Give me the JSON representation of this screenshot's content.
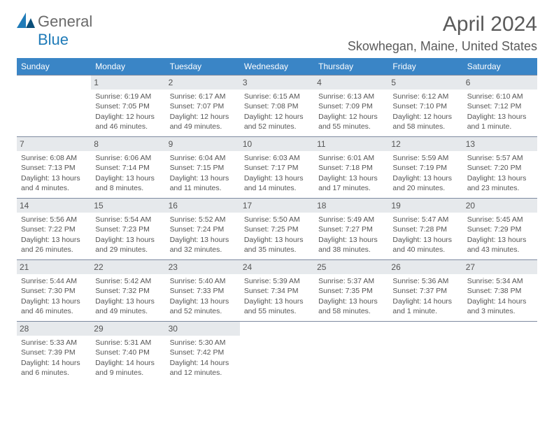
{
  "brand": {
    "part1": "General",
    "part2": "Blue"
  },
  "title": "April 2024",
  "location": "Skowhegan, Maine, United States",
  "colors": {
    "header_bg": "#3a85c6",
    "daynum_bg": "#e6e9ec",
    "row_border": "#7d8aa0",
    "text": "#555555"
  },
  "weekdays": [
    "Sunday",
    "Monday",
    "Tuesday",
    "Wednesday",
    "Thursday",
    "Friday",
    "Saturday"
  ],
  "days": [
    {
      "n": "",
      "sr": "",
      "ss": "",
      "dl1": "",
      "dl2": "",
      "empty": true
    },
    {
      "n": "1",
      "sr": "Sunrise: 6:19 AM",
      "ss": "Sunset: 7:05 PM",
      "dl1": "Daylight: 12 hours",
      "dl2": "and 46 minutes."
    },
    {
      "n": "2",
      "sr": "Sunrise: 6:17 AM",
      "ss": "Sunset: 7:07 PM",
      "dl1": "Daylight: 12 hours",
      "dl2": "and 49 minutes."
    },
    {
      "n": "3",
      "sr": "Sunrise: 6:15 AM",
      "ss": "Sunset: 7:08 PM",
      "dl1": "Daylight: 12 hours",
      "dl2": "and 52 minutes."
    },
    {
      "n": "4",
      "sr": "Sunrise: 6:13 AM",
      "ss": "Sunset: 7:09 PM",
      "dl1": "Daylight: 12 hours",
      "dl2": "and 55 minutes."
    },
    {
      "n": "5",
      "sr": "Sunrise: 6:12 AM",
      "ss": "Sunset: 7:10 PM",
      "dl1": "Daylight: 12 hours",
      "dl2": "and 58 minutes."
    },
    {
      "n": "6",
      "sr": "Sunrise: 6:10 AM",
      "ss": "Sunset: 7:12 PM",
      "dl1": "Daylight: 13 hours",
      "dl2": "and 1 minute."
    },
    {
      "n": "7",
      "sr": "Sunrise: 6:08 AM",
      "ss": "Sunset: 7:13 PM",
      "dl1": "Daylight: 13 hours",
      "dl2": "and 4 minutes."
    },
    {
      "n": "8",
      "sr": "Sunrise: 6:06 AM",
      "ss": "Sunset: 7:14 PM",
      "dl1": "Daylight: 13 hours",
      "dl2": "and 8 minutes."
    },
    {
      "n": "9",
      "sr": "Sunrise: 6:04 AM",
      "ss": "Sunset: 7:15 PM",
      "dl1": "Daylight: 13 hours",
      "dl2": "and 11 minutes."
    },
    {
      "n": "10",
      "sr": "Sunrise: 6:03 AM",
      "ss": "Sunset: 7:17 PM",
      "dl1": "Daylight: 13 hours",
      "dl2": "and 14 minutes."
    },
    {
      "n": "11",
      "sr": "Sunrise: 6:01 AM",
      "ss": "Sunset: 7:18 PM",
      "dl1": "Daylight: 13 hours",
      "dl2": "and 17 minutes."
    },
    {
      "n": "12",
      "sr": "Sunrise: 5:59 AM",
      "ss": "Sunset: 7:19 PM",
      "dl1": "Daylight: 13 hours",
      "dl2": "and 20 minutes."
    },
    {
      "n": "13",
      "sr": "Sunrise: 5:57 AM",
      "ss": "Sunset: 7:20 PM",
      "dl1": "Daylight: 13 hours",
      "dl2": "and 23 minutes."
    },
    {
      "n": "14",
      "sr": "Sunrise: 5:56 AM",
      "ss": "Sunset: 7:22 PM",
      "dl1": "Daylight: 13 hours",
      "dl2": "and 26 minutes."
    },
    {
      "n": "15",
      "sr": "Sunrise: 5:54 AM",
      "ss": "Sunset: 7:23 PM",
      "dl1": "Daylight: 13 hours",
      "dl2": "and 29 minutes."
    },
    {
      "n": "16",
      "sr": "Sunrise: 5:52 AM",
      "ss": "Sunset: 7:24 PM",
      "dl1": "Daylight: 13 hours",
      "dl2": "and 32 minutes."
    },
    {
      "n": "17",
      "sr": "Sunrise: 5:50 AM",
      "ss": "Sunset: 7:25 PM",
      "dl1": "Daylight: 13 hours",
      "dl2": "and 35 minutes."
    },
    {
      "n": "18",
      "sr": "Sunrise: 5:49 AM",
      "ss": "Sunset: 7:27 PM",
      "dl1": "Daylight: 13 hours",
      "dl2": "and 38 minutes."
    },
    {
      "n": "19",
      "sr": "Sunrise: 5:47 AM",
      "ss": "Sunset: 7:28 PM",
      "dl1": "Daylight: 13 hours",
      "dl2": "and 40 minutes."
    },
    {
      "n": "20",
      "sr": "Sunrise: 5:45 AM",
      "ss": "Sunset: 7:29 PM",
      "dl1": "Daylight: 13 hours",
      "dl2": "and 43 minutes."
    },
    {
      "n": "21",
      "sr": "Sunrise: 5:44 AM",
      "ss": "Sunset: 7:30 PM",
      "dl1": "Daylight: 13 hours",
      "dl2": "and 46 minutes."
    },
    {
      "n": "22",
      "sr": "Sunrise: 5:42 AM",
      "ss": "Sunset: 7:32 PM",
      "dl1": "Daylight: 13 hours",
      "dl2": "and 49 minutes."
    },
    {
      "n": "23",
      "sr": "Sunrise: 5:40 AM",
      "ss": "Sunset: 7:33 PM",
      "dl1": "Daylight: 13 hours",
      "dl2": "and 52 minutes."
    },
    {
      "n": "24",
      "sr": "Sunrise: 5:39 AM",
      "ss": "Sunset: 7:34 PM",
      "dl1": "Daylight: 13 hours",
      "dl2": "and 55 minutes."
    },
    {
      "n": "25",
      "sr": "Sunrise: 5:37 AM",
      "ss": "Sunset: 7:35 PM",
      "dl1": "Daylight: 13 hours",
      "dl2": "and 58 minutes."
    },
    {
      "n": "26",
      "sr": "Sunrise: 5:36 AM",
      "ss": "Sunset: 7:37 PM",
      "dl1": "Daylight: 14 hours",
      "dl2": "and 1 minute."
    },
    {
      "n": "27",
      "sr": "Sunrise: 5:34 AM",
      "ss": "Sunset: 7:38 PM",
      "dl1": "Daylight: 14 hours",
      "dl2": "and 3 minutes."
    },
    {
      "n": "28",
      "sr": "Sunrise: 5:33 AM",
      "ss": "Sunset: 7:39 PM",
      "dl1": "Daylight: 14 hours",
      "dl2": "and 6 minutes."
    },
    {
      "n": "29",
      "sr": "Sunrise: 5:31 AM",
      "ss": "Sunset: 7:40 PM",
      "dl1": "Daylight: 14 hours",
      "dl2": "and 9 minutes."
    },
    {
      "n": "30",
      "sr": "Sunrise: 5:30 AM",
      "ss": "Sunset: 7:42 PM",
      "dl1": "Daylight: 14 hours",
      "dl2": "and 12 minutes."
    },
    {
      "n": "",
      "sr": "",
      "ss": "",
      "dl1": "",
      "dl2": "",
      "empty": true
    },
    {
      "n": "",
      "sr": "",
      "ss": "",
      "dl1": "",
      "dl2": "",
      "empty": true
    },
    {
      "n": "",
      "sr": "",
      "ss": "",
      "dl1": "",
      "dl2": "",
      "empty": true
    },
    {
      "n": "",
      "sr": "",
      "ss": "",
      "dl1": "",
      "dl2": "",
      "empty": true
    }
  ]
}
